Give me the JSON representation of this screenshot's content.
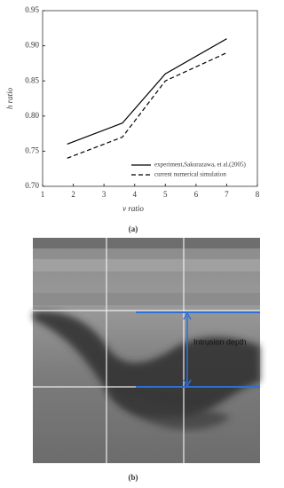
{
  "chart_data": {
    "type": "line",
    "x_label": "v ratio",
    "y_label": "h ratio",
    "x": [
      1.8,
      3.6,
      5,
      7
    ],
    "series": [
      {
        "name": "experiment,Sakurazawa, et al.(2005)",
        "color": "#000000",
        "style": "solid",
        "values": [
          0.76,
          0.79,
          0.86,
          0.91
        ]
      },
      {
        "name": "current numerical simulation",
        "color": "#000000",
        "style": "dashed",
        "values": [
          0.74,
          0.77,
          0.85,
          0.89
        ]
      }
    ],
    "xlim": [
      1,
      8
    ],
    "xticks": [
      1,
      2,
      3,
      4,
      5,
      6,
      7,
      8
    ],
    "ylim": [
      0.7,
      0.95
    ],
    "yticks": [
      {
        "value": 0.7,
        "label": "0.70"
      },
      {
        "value": 0.75,
        "label": "0.75"
      },
      {
        "value": 0.8,
        "label": "0.80"
      },
      {
        "value": 0.85,
        "label": "0.85"
      },
      {
        "value": 0.9,
        "label": "0.90"
      },
      {
        "value": 0.95,
        "label": "0.95"
      }
    ],
    "grid": false,
    "legend": "lower right"
  },
  "captions": [
    "(a)",
    "(b)"
  ],
  "photo": {
    "annotation": "Intrusion depth"
  }
}
